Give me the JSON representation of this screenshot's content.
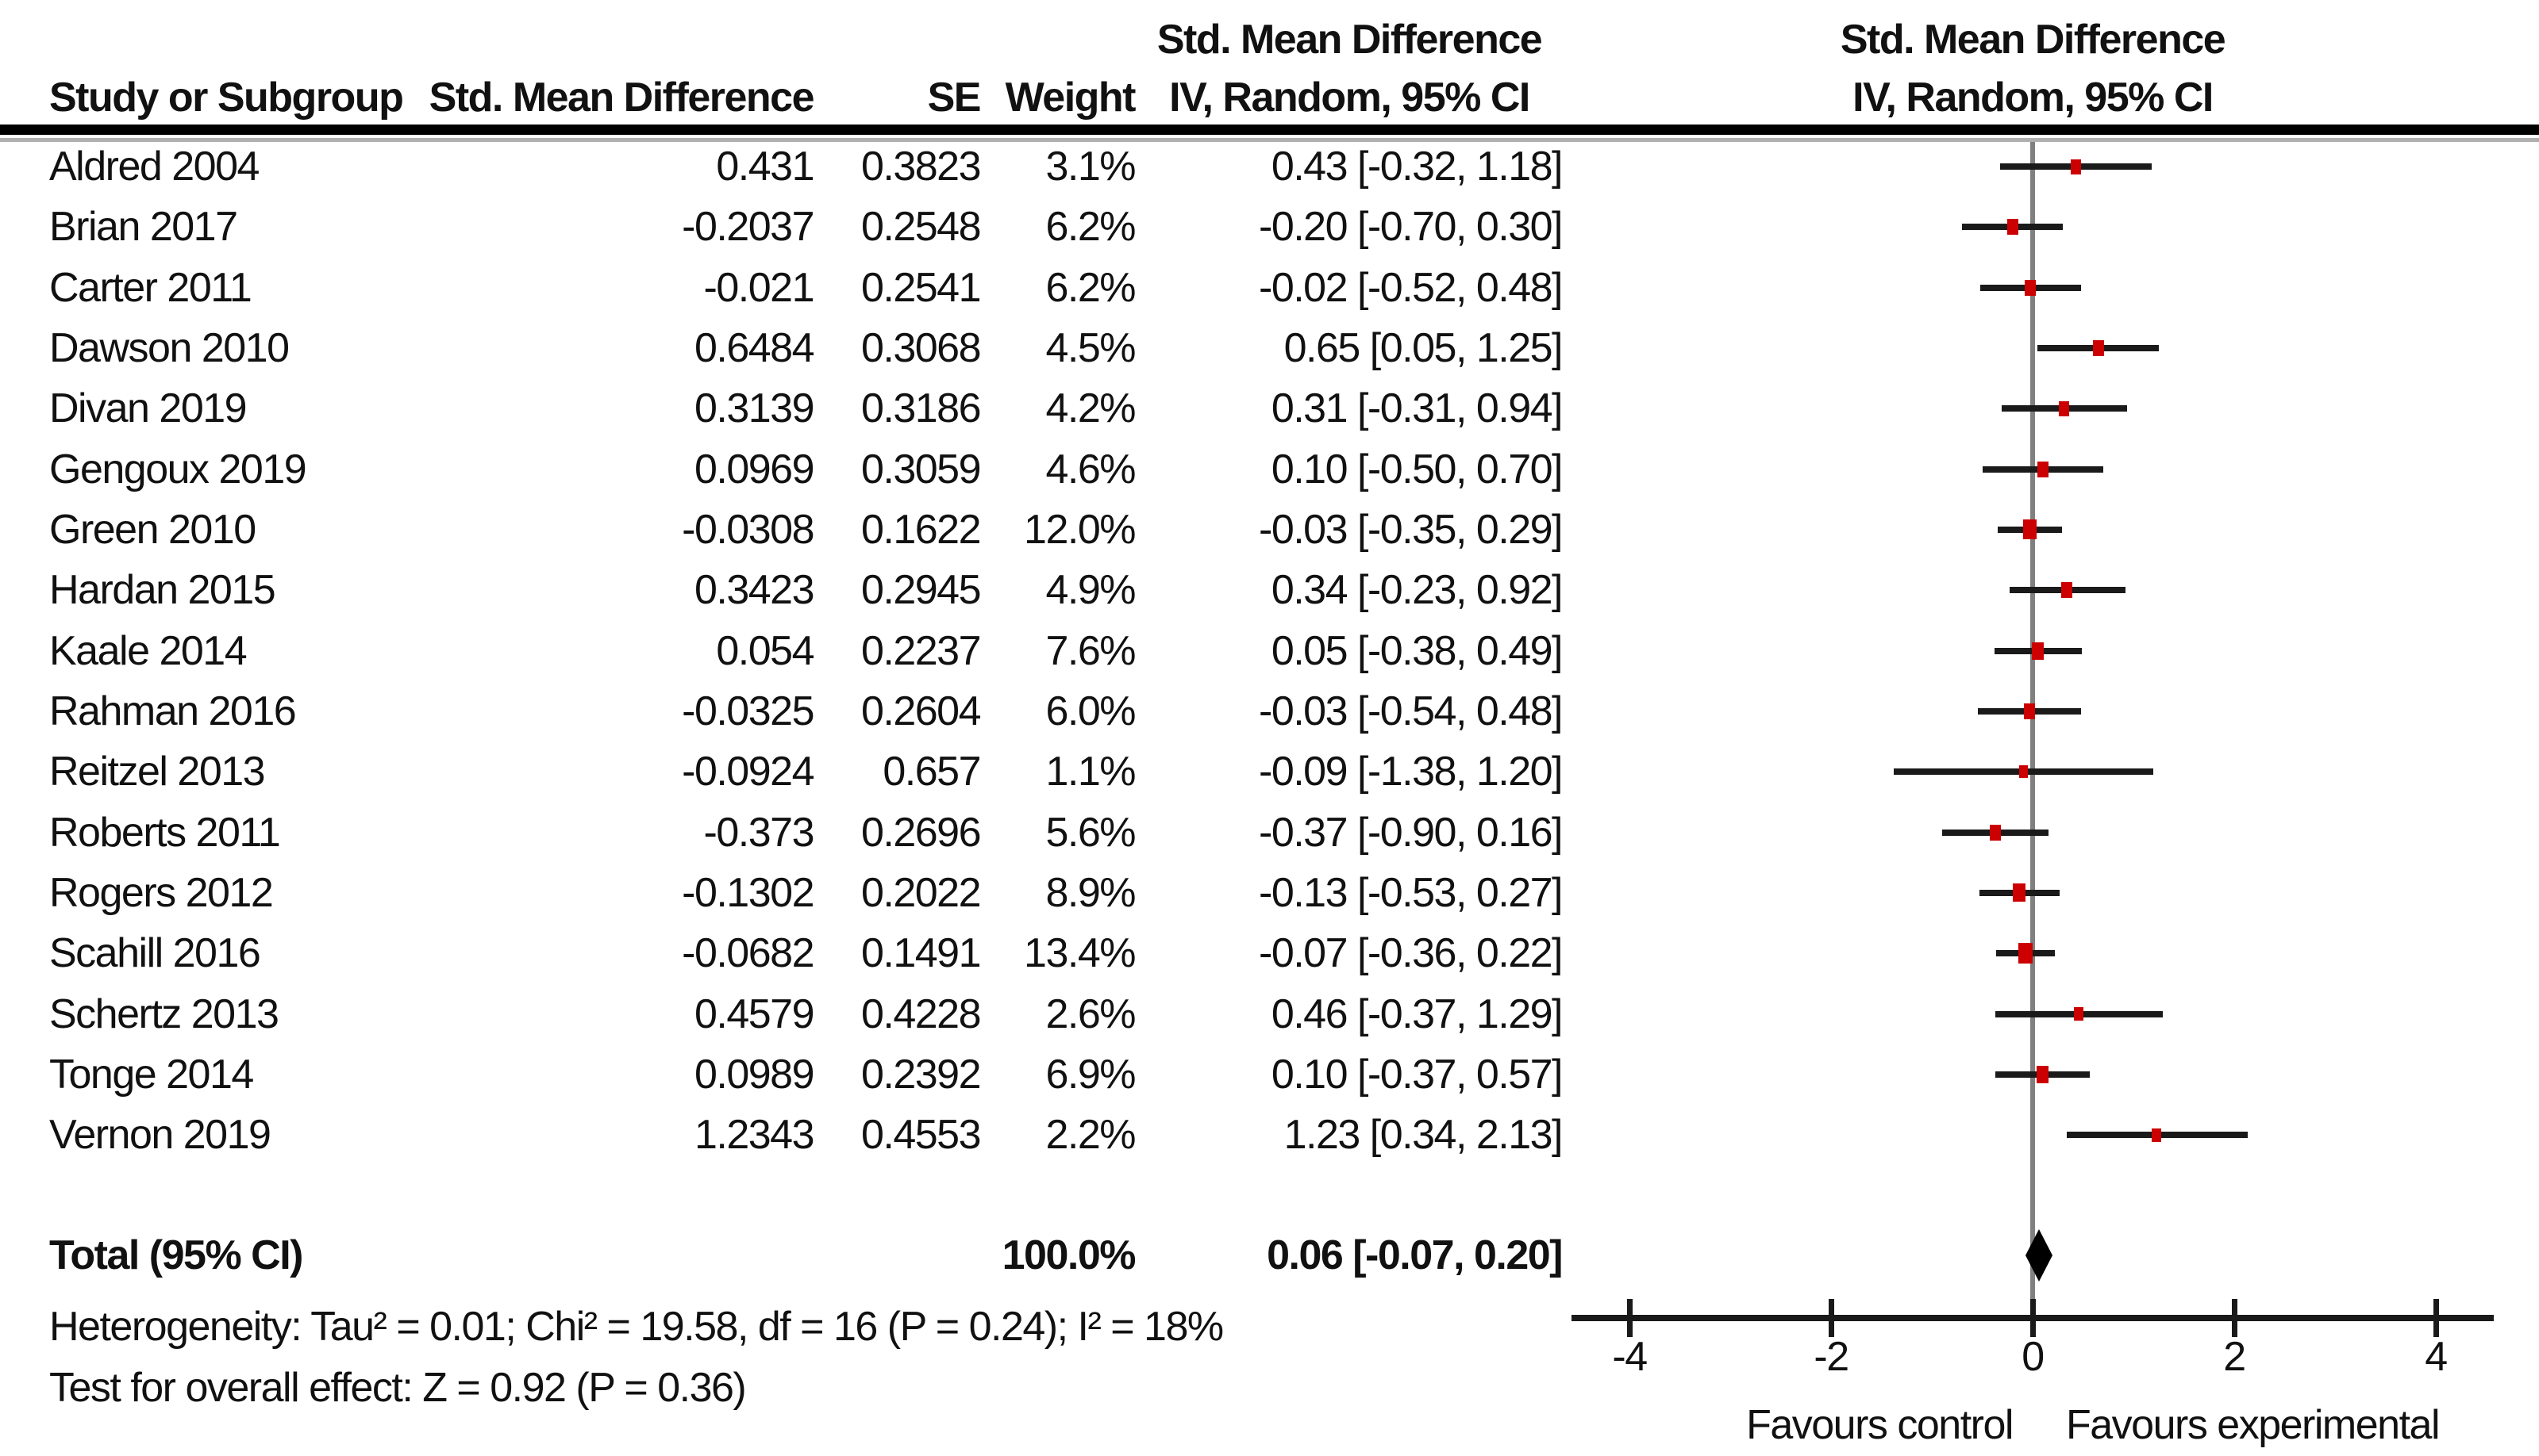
{
  "table": {
    "col_headers": {
      "study": "Study or Subgroup",
      "smd": "Std. Mean Difference",
      "se": "SE",
      "weight": "Weight",
      "ci_line1": "Std. Mean Difference",
      "ci_line2": "IV, Random, 95% CI"
    },
    "plot_headers": {
      "line1": "Std. Mean Difference",
      "line2": "IV, Random, 95% CI"
    }
  },
  "chart_data": {
    "type": "forest",
    "title": "",
    "xlabel_left": "Favours control",
    "xlabel_right": "Favours experimental",
    "axis": {
      "ticks": [
        -4,
        -2,
        0,
        2,
        4
      ],
      "xlim": [
        -4.55,
        4.55
      ],
      "grid": false
    },
    "studies": [
      {
        "name": "Aldred 2004",
        "smd_text": "0.431",
        "se_text": "0.3823",
        "weight_text": "3.1%",
        "ci_text": "0.43 [-0.32, 1.18]",
        "mean": 0.43,
        "lo": -0.32,
        "hi": 1.18,
        "weight": 3.1
      },
      {
        "name": "Brian 2017",
        "smd_text": "-0.2037",
        "se_text": "0.2548",
        "weight_text": "6.2%",
        "ci_text": "-0.20 [-0.70, 0.30]",
        "mean": -0.2,
        "lo": -0.7,
        "hi": 0.3,
        "weight": 6.2
      },
      {
        "name": "Carter 2011",
        "smd_text": "-0.021",
        "se_text": "0.2541",
        "weight_text": "6.2%",
        "ci_text": "-0.02 [-0.52, 0.48]",
        "mean": -0.02,
        "lo": -0.52,
        "hi": 0.48,
        "weight": 6.2
      },
      {
        "name": "Dawson 2010",
        "smd_text": "0.6484",
        "se_text": "0.3068",
        "weight_text": "4.5%",
        "ci_text": "0.65 [0.05, 1.25]",
        "mean": 0.65,
        "lo": 0.05,
        "hi": 1.25,
        "weight": 4.5
      },
      {
        "name": "Divan 2019",
        "smd_text": "0.3139",
        "se_text": "0.3186",
        "weight_text": "4.2%",
        "ci_text": "0.31 [-0.31, 0.94]",
        "mean": 0.31,
        "lo": -0.31,
        "hi": 0.94,
        "weight": 4.2
      },
      {
        "name": "Gengoux 2019",
        "smd_text": "0.0969",
        "se_text": "0.3059",
        "weight_text": "4.6%",
        "ci_text": "0.10 [-0.50, 0.70]",
        "mean": 0.1,
        "lo": -0.5,
        "hi": 0.7,
        "weight": 4.6
      },
      {
        "name": "Green 2010",
        "smd_text": "-0.0308",
        "se_text": "0.1622",
        "weight_text": "12.0%",
        "ci_text": "-0.03 [-0.35, 0.29]",
        "mean": -0.03,
        "lo": -0.35,
        "hi": 0.29,
        "weight": 12.0
      },
      {
        "name": "Hardan 2015",
        "smd_text": "0.3423",
        "se_text": "0.2945",
        "weight_text": "4.9%",
        "ci_text": "0.34 [-0.23, 0.92]",
        "mean": 0.34,
        "lo": -0.23,
        "hi": 0.92,
        "weight": 4.9
      },
      {
        "name": "Kaale 2014",
        "smd_text": "0.054",
        "se_text": "0.2237",
        "weight_text": "7.6%",
        "ci_text": "0.05 [-0.38, 0.49]",
        "mean": 0.05,
        "lo": -0.38,
        "hi": 0.49,
        "weight": 7.6
      },
      {
        "name": "Rahman 2016",
        "smd_text": "-0.0325",
        "se_text": "0.2604",
        "weight_text": "6.0%",
        "ci_text": "-0.03 [-0.54, 0.48]",
        "mean": -0.03,
        "lo": -0.54,
        "hi": 0.48,
        "weight": 6.0
      },
      {
        "name": "Reitzel 2013",
        "smd_text": "-0.0924",
        "se_text": "0.657",
        "weight_text": "1.1%",
        "ci_text": "-0.09 [-1.38, 1.20]",
        "mean": -0.09,
        "lo": -1.38,
        "hi": 1.2,
        "weight": 1.1
      },
      {
        "name": "Roberts 2011",
        "smd_text": "-0.373",
        "se_text": "0.2696",
        "weight_text": "5.6%",
        "ci_text": "-0.37 [-0.90, 0.16]",
        "mean": -0.37,
        "lo": -0.9,
        "hi": 0.16,
        "weight": 5.6
      },
      {
        "name": "Rogers 2012",
        "smd_text": "-0.1302",
        "se_text": "0.2022",
        "weight_text": "8.9%",
        "ci_text": "-0.13 [-0.53, 0.27]",
        "mean": -0.13,
        "lo": -0.53,
        "hi": 0.27,
        "weight": 8.9
      },
      {
        "name": "Scahill 2016",
        "smd_text": "-0.0682",
        "se_text": "0.1491",
        "weight_text": "13.4%",
        "ci_text": "-0.07 [-0.36, 0.22]",
        "mean": -0.07,
        "lo": -0.36,
        "hi": 0.22,
        "weight": 13.4
      },
      {
        "name": "Schertz 2013",
        "smd_text": "0.4579",
        "se_text": "0.4228",
        "weight_text": "2.6%",
        "ci_text": "0.46 [-0.37, 1.29]",
        "mean": 0.46,
        "lo": -0.37,
        "hi": 1.29,
        "weight": 2.6
      },
      {
        "name": "Tonge 2014",
        "smd_text": "0.0989",
        "se_text": "0.2392",
        "weight_text": "6.9%",
        "ci_text": "0.10 [-0.37, 0.57]",
        "mean": 0.1,
        "lo": -0.37,
        "hi": 0.57,
        "weight": 6.9
      },
      {
        "name": "Vernon 2019",
        "smd_text": "1.2343",
        "se_text": "0.4553",
        "weight_text": "2.2%",
        "ci_text": "1.23 [0.34, 2.13]",
        "mean": 1.23,
        "lo": 0.34,
        "hi": 2.13,
        "weight": 2.2
      }
    ],
    "total": {
      "label": "Total (95% CI)",
      "weight_text": "100.0%",
      "ci_text": "0.06 [-0.07, 0.20]",
      "mean": 0.06,
      "lo": -0.07,
      "hi": 0.2
    },
    "heterogeneity": "Heterogeneity: Tau² = 0.01; Chi² = 19.58, df = 16 (P = 0.24); I² = 18%",
    "overall_effect": "Test for overall effect: Z = 0.92 (P = 0.36)",
    "colors": {
      "marker": "#cc0000",
      "ci_line": "#1a1a1a",
      "zero_line": "#808080",
      "diamond": "#000000",
      "text": "#111111"
    }
  }
}
